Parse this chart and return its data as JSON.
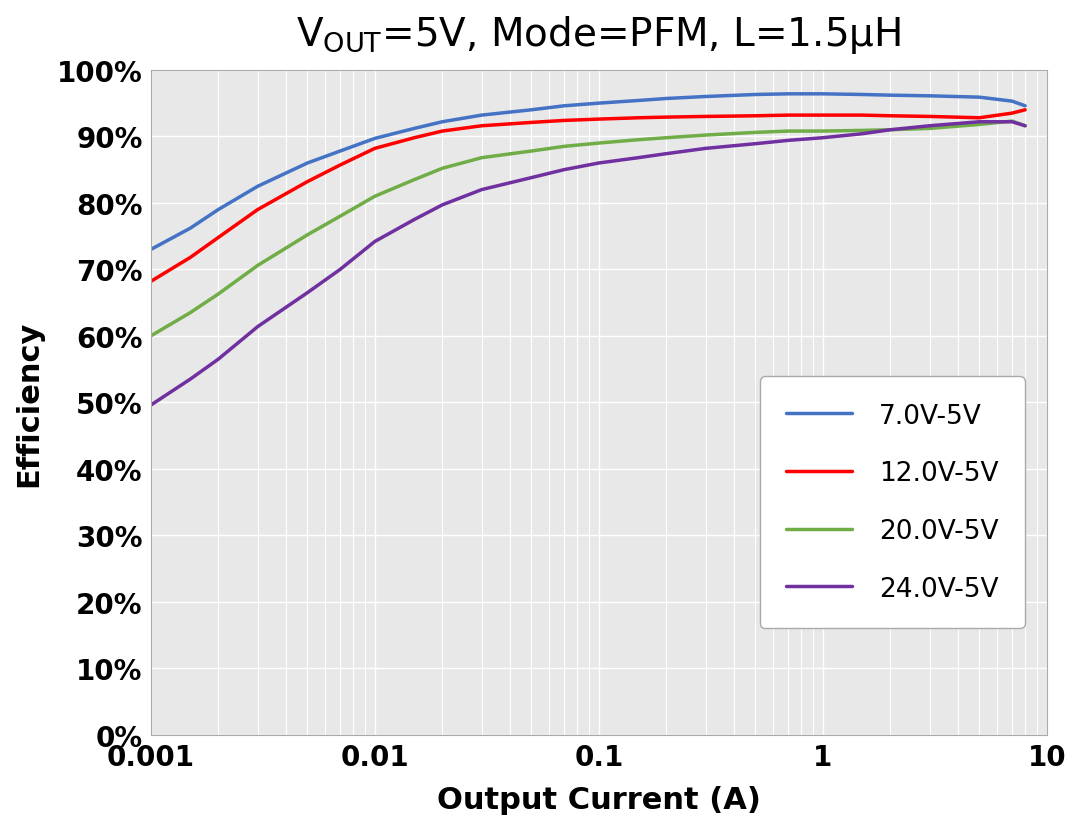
{
  "title_part1": "V",
  "title_sub": "OUT",
  "title_part2": "=5V, Mode=PFM, L=1.5μH",
  "xlabel": "Output Current (A)",
  "ylabel": "Efficiency",
  "xlim": [
    0.001,
    10
  ],
  "ylim": [
    0.0,
    1.0
  ],
  "yticks": [
    0.0,
    0.1,
    0.2,
    0.3,
    0.4,
    0.5,
    0.6,
    0.7,
    0.8,
    0.9,
    1.0
  ],
  "ytick_labels": [
    "0%",
    "10%",
    "20%",
    "30%",
    "40%",
    "50%",
    "60%",
    "70%",
    "80%",
    "90%",
    "100%"
  ],
  "xtick_positions": [
    0.001,
    0.01,
    0.1,
    1,
    10
  ],
  "xtick_labels": [
    "0.001",
    "0.01",
    "0.1",
    "1",
    "10"
  ],
  "series": [
    {
      "label": "7.0V-5V",
      "color": "#4472C4",
      "x": [
        0.001,
        0.0015,
        0.002,
        0.003,
        0.005,
        0.007,
        0.01,
        0.015,
        0.02,
        0.03,
        0.05,
        0.07,
        0.1,
        0.15,
        0.2,
        0.3,
        0.5,
        0.7,
        1.0,
        1.5,
        2.0,
        3.0,
        5.0,
        7.0,
        8.0
      ],
      "y": [
        0.73,
        0.762,
        0.79,
        0.825,
        0.86,
        0.878,
        0.897,
        0.912,
        0.922,
        0.932,
        0.94,
        0.946,
        0.95,
        0.954,
        0.957,
        0.96,
        0.963,
        0.964,
        0.964,
        0.963,
        0.962,
        0.961,
        0.959,
        0.953,
        0.946
      ]
    },
    {
      "label": "12.0V-5V",
      "color": "#FF0000",
      "x": [
        0.001,
        0.0015,
        0.002,
        0.003,
        0.005,
        0.007,
        0.01,
        0.015,
        0.02,
        0.03,
        0.05,
        0.07,
        0.1,
        0.15,
        0.2,
        0.3,
        0.5,
        0.7,
        1.0,
        1.5,
        2.0,
        3.0,
        5.0,
        7.0,
        8.0
      ],
      "y": [
        0.682,
        0.718,
        0.748,
        0.79,
        0.832,
        0.857,
        0.882,
        0.898,
        0.908,
        0.916,
        0.921,
        0.924,
        0.926,
        0.928,
        0.929,
        0.93,
        0.931,
        0.932,
        0.932,
        0.932,
        0.931,
        0.93,
        0.928,
        0.935,
        0.94
      ]
    },
    {
      "label": "20.0V-5V",
      "color": "#70AD47",
      "x": [
        0.001,
        0.0015,
        0.002,
        0.003,
        0.005,
        0.007,
        0.01,
        0.015,
        0.02,
        0.03,
        0.05,
        0.07,
        0.1,
        0.15,
        0.2,
        0.3,
        0.5,
        0.7,
        1.0,
        1.5,
        2.0,
        3.0,
        5.0,
        7.0,
        8.0
      ],
      "y": [
        0.6,
        0.635,
        0.663,
        0.706,
        0.752,
        0.78,
        0.81,
        0.835,
        0.852,
        0.868,
        0.878,
        0.885,
        0.89,
        0.895,
        0.898,
        0.902,
        0.906,
        0.908,
        0.908,
        0.909,
        0.91,
        0.912,
        0.918,
        0.923,
        0.916
      ]
    },
    {
      "label": "24.0V-5V",
      "color": "#7030A0",
      "x": [
        0.001,
        0.0015,
        0.002,
        0.003,
        0.005,
        0.007,
        0.01,
        0.015,
        0.02,
        0.03,
        0.05,
        0.07,
        0.1,
        0.15,
        0.2,
        0.3,
        0.5,
        0.7,
        1.0,
        1.5,
        2.0,
        3.0,
        5.0,
        7.0,
        8.0
      ],
      "y": [
        0.496,
        0.535,
        0.565,
        0.614,
        0.665,
        0.7,
        0.742,
        0.775,
        0.797,
        0.82,
        0.838,
        0.85,
        0.86,
        0.868,
        0.874,
        0.882,
        0.889,
        0.894,
        0.898,
        0.904,
        0.91,
        0.916,
        0.922,
        0.922,
        0.916
      ]
    }
  ],
  "figure_bg": "#FFFFFF",
  "plot_bg": "#E8E8E8",
  "grid_color": "#FFFFFF",
  "grid_linewidth": 1.0,
  "title_fontsize": 28,
  "label_fontsize": 22,
  "tick_fontsize": 20,
  "legend_fontsize": 19,
  "linewidth": 2.5
}
